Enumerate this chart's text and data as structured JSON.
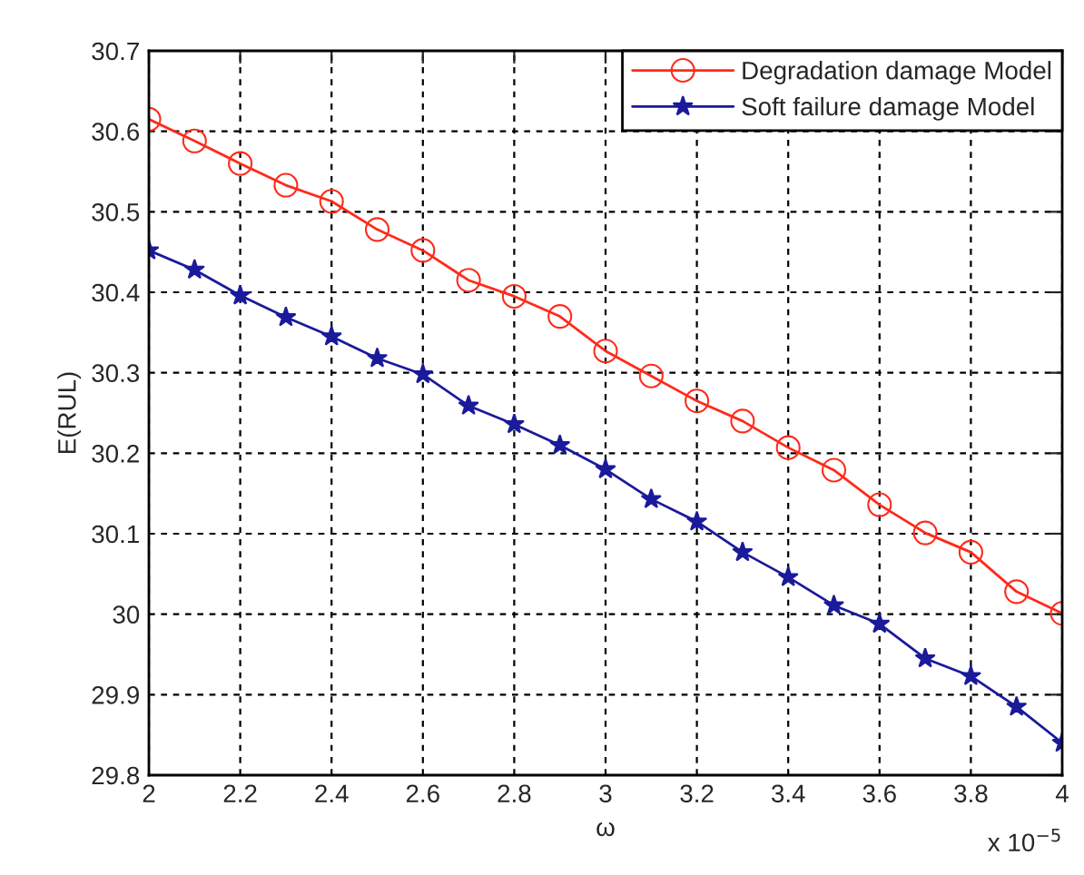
{
  "chart_data": {
    "type": "line",
    "xlabel": "ω",
    "ylabel": "E(RUL)",
    "x": [
      2.0,
      2.1,
      2.2,
      2.3,
      2.4,
      2.5,
      2.6,
      2.7,
      2.8,
      2.9,
      3.0,
      3.1,
      3.2,
      3.3,
      3.4,
      3.5,
      3.6,
      3.7,
      3.8,
      3.9,
      4.0
    ],
    "series": [
      {
        "name": "Degradation damage Model",
        "color": "#ff2a1a",
        "marker": "circle",
        "values": [
          30.615,
          30.588,
          30.56,
          30.533,
          30.513,
          30.478,
          30.452,
          30.415,
          30.395,
          30.37,
          30.327,
          30.296,
          30.265,
          30.24,
          30.207,
          30.179,
          30.136,
          30.101,
          30.077,
          30.028,
          30.001
        ]
      },
      {
        "name": "Soft failure damage Model",
        "color": "#1a1a9a",
        "marker": "star",
        "values": [
          30.452,
          30.428,
          30.396,
          30.369,
          30.345,
          30.318,
          30.298,
          30.259,
          30.236,
          30.21,
          30.18,
          30.143,
          30.115,
          30.077,
          30.046,
          30.011,
          29.988,
          29.945,
          29.923,
          29.885,
          29.84
        ]
      }
    ],
    "xlim": [
      2,
      4
    ],
    "xticks": [
      2,
      2.2,
      2.4,
      2.6,
      2.8,
      3,
      3.2,
      3.4,
      3.6,
      3.8,
      4
    ],
    "ylim": [
      29.8,
      30.7
    ],
    "yticks": [
      29.8,
      29.9,
      30,
      30.1,
      30.2,
      30.3,
      30.4,
      30.5,
      30.6,
      30.7
    ],
    "grid": true,
    "legend": "top right",
    "line_style": "solid",
    "annotations": [
      "x 10$^{−5}$"
    ]
  }
}
